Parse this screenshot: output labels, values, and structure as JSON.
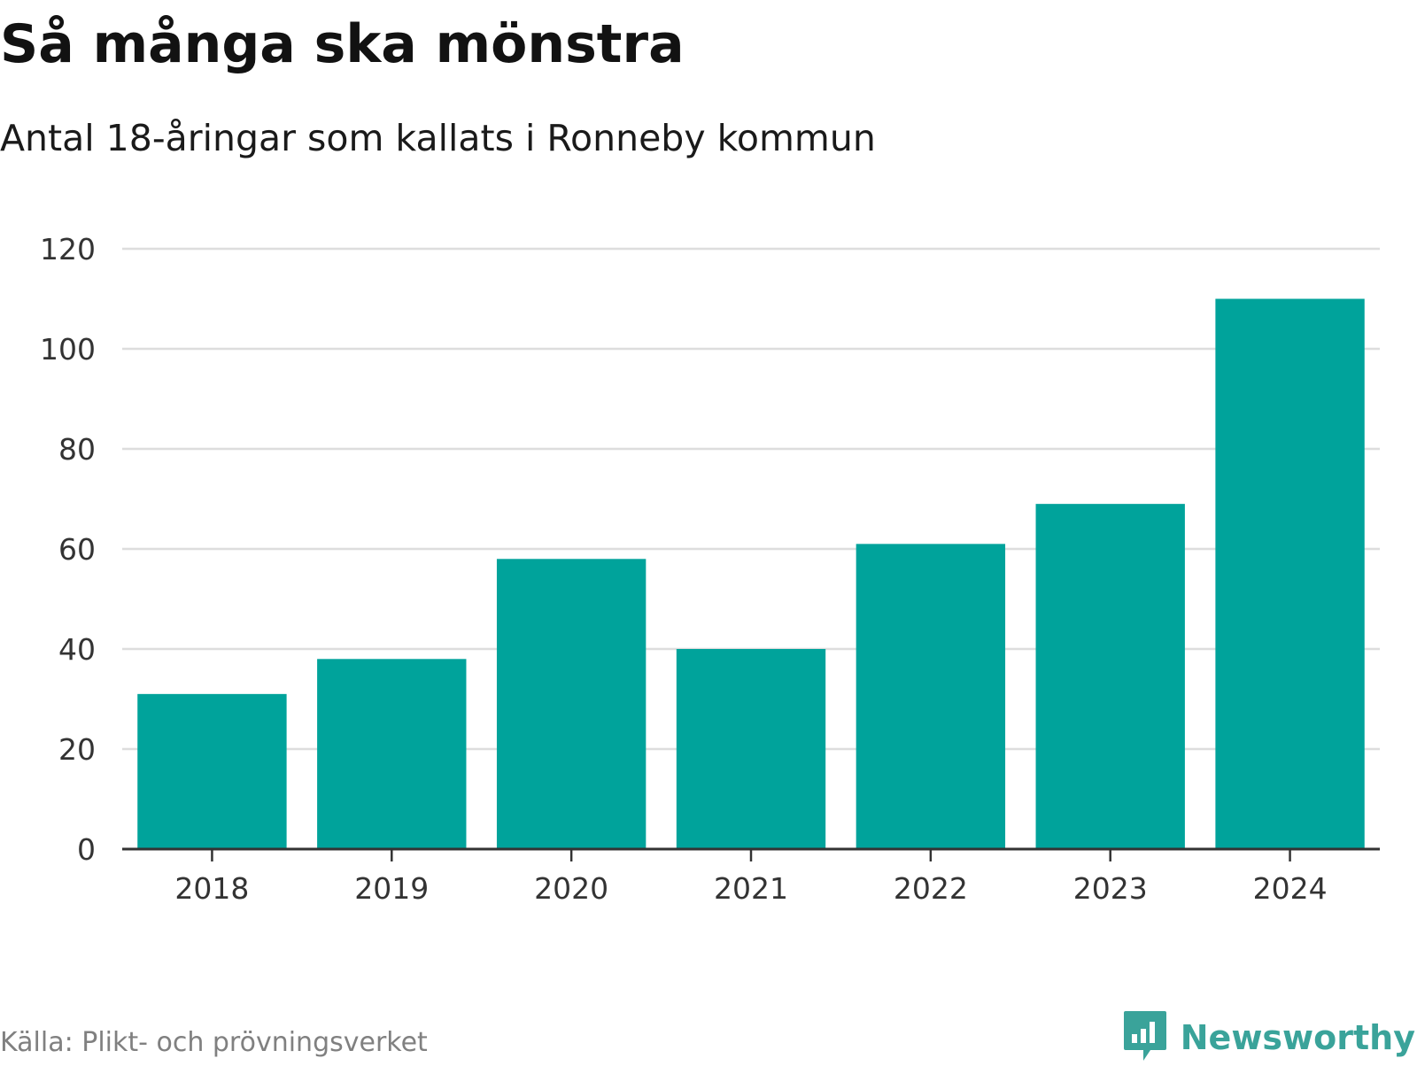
{
  "header": {
    "title": "Så många ska mönstra",
    "subtitle": "Antal 18-åringar som kallats i Ronneby kommun"
  },
  "footer": {
    "source": "Källa: Plikt- och prövningsverket",
    "brand": "Newsworthy",
    "brand_icon": "newsworthy-logo-icon"
  },
  "colors": {
    "bar": "#00a39b",
    "grid": "#dddddd",
    "axis": "#333333",
    "brand": "#3aa39a"
  },
  "chart_data": {
    "type": "bar",
    "title": "Så många ska mönstra",
    "subtitle": "Antal 18-åringar som kallats i Ronneby kommun",
    "xlabel": "",
    "ylabel": "",
    "categories": [
      "2018",
      "2019",
      "2020",
      "2021",
      "2022",
      "2023",
      "2024"
    ],
    "values": [
      31,
      38,
      58,
      40,
      61,
      69,
      110
    ],
    "ylim": [
      0,
      120
    ],
    "yticks": [
      0,
      20,
      40,
      60,
      80,
      100,
      120
    ],
    "grid": true,
    "legend": "none"
  }
}
